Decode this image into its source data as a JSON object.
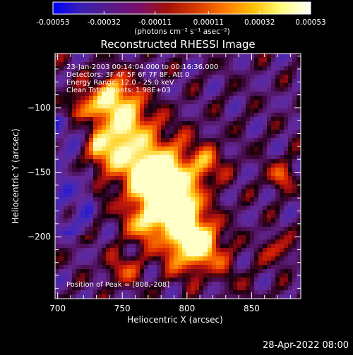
{
  "colorbar": {
    "tick_labels": [
      "-0.00053",
      "-0.00032",
      "-0.00011",
      "0.00011",
      "0.00032",
      "0.00053"
    ],
    "tick_values": [
      -0.00053,
      -0.00032,
      -0.00011,
      0.00011,
      0.00032,
      0.00053
    ],
    "range": [
      -0.00053,
      0.00053
    ],
    "unit_label": "(photons cm⁻² s⁻¹ asec⁻²)",
    "colormap": [
      "#0000ff",
      "#3b1fb0",
      "#5a1a8a",
      "#7a0f6a",
      "#a3120a",
      "#d63a00",
      "#ff7a00",
      "#ffc000",
      "#ffff80",
      "#ffffff"
    ]
  },
  "chart_data": {
    "type": "heatmap",
    "title": "Reconstructed RHESSI Image",
    "xlabel": "Heliocentric X (arcsec)",
    "ylabel": "Heliocentric Y (arcsec)",
    "xlim": [
      698,
      888
    ],
    "ylim": [
      -248,
      -58
    ],
    "x_ticks": [
      700,
      750,
      800,
      850
    ],
    "x_tick_labels": [
      "700",
      "750",
      "800",
      "850"
    ],
    "y_ticks": [
      -100,
      -150,
      -200
    ],
    "y_tick_labels": [
      "−100",
      "−150",
      "−200"
    ],
    "peak": [
      808,
      -208
    ],
    "annotations": [
      "23-Jan-2003 00:14:04.000 to 00:16:36.000",
      "Detectors: 3F 4F 5F 6F 7F 8F, Att 0",
      "Energy Range: 12.0 - 25.0 keV",
      "Clean     Total counts: 1.98E+03",
      "Position of Peak = [808,-208]"
    ]
  },
  "footer": {
    "timestamp": "28-Apr-2022 08:00"
  }
}
